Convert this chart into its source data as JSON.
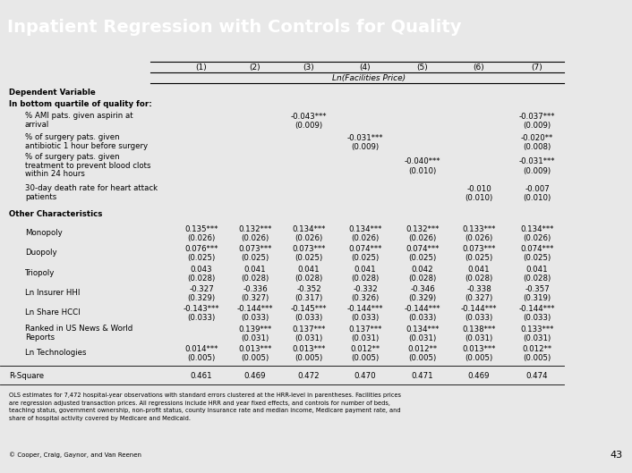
{
  "title": "Inpatient Regression with Controls for Quality",
  "title_bg": "#3333AA",
  "title_color": "#FFFFFF",
  "columns": [
    "(1)",
    "(2)",
    "(3)",
    "(4)",
    "(5)",
    "(6)",
    "(7)"
  ],
  "col_header2": "Ln(Facilities Price)",
  "bg_color": "#E8E8E8",
  "footnote": "OLS estimates for 7,472 hospital-year observations with standard errors clustered at the HRR-level in parentheses. Facilities prices\nare regression adjusted transaction prices. All regressions include HRR and year fixed effects, and controls for number of beds,\nteaching status, government ownership, non-profit status, county insurance rate and median income, Medicare payment rate, and\nshare of hospital activity covered by Medicare and Medicaid.",
  "copyright": "© Cooper, Craig, Gaynor, and Van Reenen",
  "page_num": "43"
}
